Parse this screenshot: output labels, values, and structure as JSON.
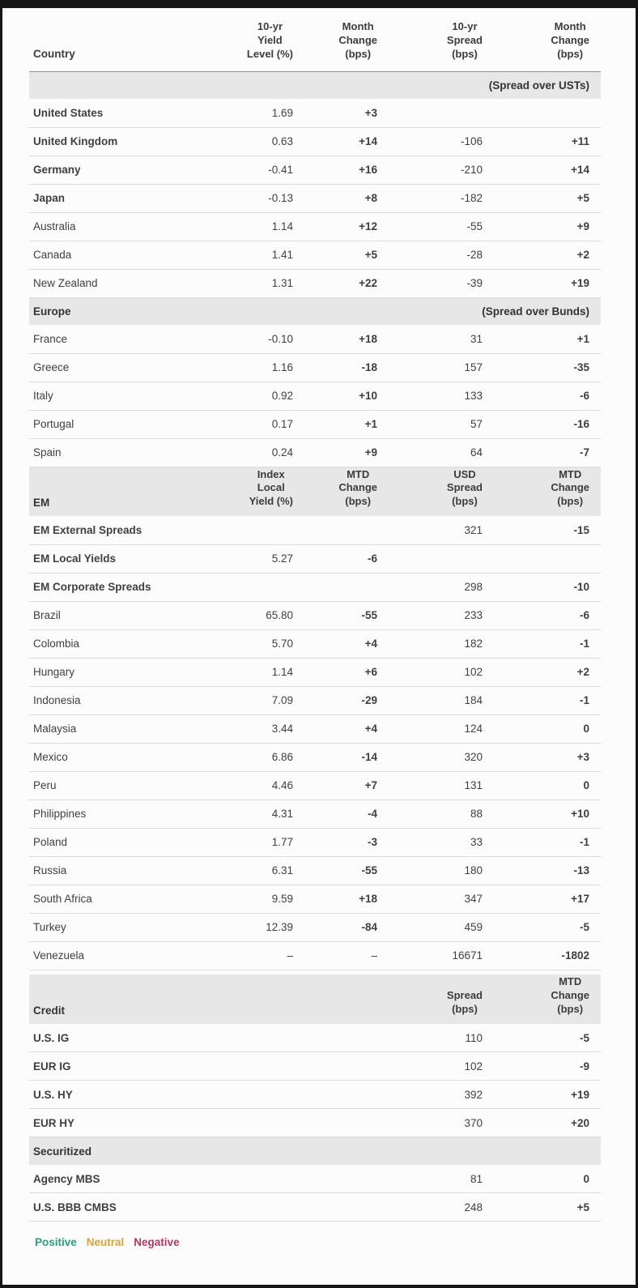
{
  "colors": {
    "positive": "#2e9c7d",
    "neutral": "#d7a33e",
    "negative": "#b23a5f",
    "frame": "#161616",
    "band_bg": "#e8e7e7"
  },
  "chart_data": {
    "type": "table",
    "header": {
      "country_label": "Country",
      "columns": [
        "10-yr\nYield\nLevel (%)",
        "Month\nChange\n(bps)",
        "10-yr\nSpread\n(bps)",
        "Month\nChange\n(bps)"
      ]
    },
    "sections": [
      {
        "label": "",
        "note": "(Spread over USTs)",
        "rows": [
          {
            "label": "United States",
            "bold": true,
            "cells": [
              {
                "t": "1.69",
                "c": "plain"
              },
              {
                "t": "+3",
                "c": "neu"
              },
              {
                "t": "",
                "c": "plain"
              },
              {
                "t": "",
                "c": "plain"
              }
            ]
          },
          {
            "label": "United Kingdom",
            "bold": true,
            "cells": [
              {
                "t": "0.63",
                "c": "plain"
              },
              {
                "t": "+14",
                "c": "neg"
              },
              {
                "t": "-106",
                "c": "plain"
              },
              {
                "t": "+11",
                "c": "neg"
              }
            ]
          },
          {
            "label": "Germany",
            "bold": true,
            "cells": [
              {
                "t": "-0.41",
                "c": "plain"
              },
              {
                "t": "+16",
                "c": "neg"
              },
              {
                "t": "-210",
                "c": "plain"
              },
              {
                "t": "+14",
                "c": "neg"
              }
            ]
          },
          {
            "label": "Japan",
            "bold": true,
            "cells": [
              {
                "t": "-0.13",
                "c": "plain"
              },
              {
                "t": "+8",
                "c": "neg"
              },
              {
                "t": "-182",
                "c": "plain"
              },
              {
                "t": "+5",
                "c": "neg"
              }
            ]
          },
          {
            "label": "Australia",
            "bold": false,
            "cells": [
              {
                "t": "1.14",
                "c": "plain"
              },
              {
                "t": "+12",
                "c": "neg"
              },
              {
                "t": "-55",
                "c": "plain"
              },
              {
                "t": "+9",
                "c": "neg"
              }
            ]
          },
          {
            "label": "Canada",
            "bold": false,
            "cells": [
              {
                "t": "1.41",
                "c": "plain"
              },
              {
                "t": "+5",
                "c": "neg"
              },
              {
                "t": "-28",
                "c": "plain"
              },
              {
                "t": "+2",
                "c": "neu"
              }
            ]
          },
          {
            "label": "New Zealand",
            "bold": false,
            "cells": [
              {
                "t": "1.31",
                "c": "plain"
              },
              {
                "t": "+22",
                "c": "neg"
              },
              {
                "t": "-39",
                "c": "plain"
              },
              {
                "t": "+19",
                "c": "neg"
              }
            ]
          }
        ]
      },
      {
        "label": "Europe",
        "note": "(Spread over Bunds)",
        "rows": [
          {
            "label": "France",
            "bold": false,
            "cells": [
              {
                "t": "-0.10",
                "c": "plain"
              },
              {
                "t": "+18",
                "c": "neg"
              },
              {
                "t": "31",
                "c": "plain"
              },
              {
                "t": "+1",
                "c": "neu"
              }
            ]
          },
          {
            "label": "Greece",
            "bold": false,
            "cells": [
              {
                "t": "1.16",
                "c": "plain"
              },
              {
                "t": "-18",
                "c": "pos"
              },
              {
                "t": "157",
                "c": "plain"
              },
              {
                "t": "-35",
                "c": "pos"
              }
            ]
          },
          {
            "label": "Italy",
            "bold": false,
            "cells": [
              {
                "t": "0.92",
                "c": "plain"
              },
              {
                "t": "+10",
                "c": "neg"
              },
              {
                "t": "133",
                "c": "plain"
              },
              {
                "t": "-6",
                "c": "pos"
              }
            ]
          },
          {
            "label": "Portugal",
            "bold": false,
            "cells": [
              {
                "t": "0.17",
                "c": "plain"
              },
              {
                "t": "+1",
                "c": "neu"
              },
              {
                "t": "57",
                "c": "plain"
              },
              {
                "t": "-16",
                "c": "pos"
              }
            ]
          },
          {
            "label": "Spain",
            "bold": false,
            "cells": [
              {
                "t": "0.24",
                "c": "plain"
              },
              {
                "t": "+9",
                "c": "neg"
              },
              {
                "t": "64",
                "c": "plain"
              },
              {
                "t": "-7",
                "c": "pos"
              }
            ]
          }
        ]
      },
      {
        "label": "EM",
        "columns": [
          "Index\nLocal\nYield (%)",
          "MTD\nChange\n(bps)",
          "USD\nSpread\n(bps)",
          "MTD\nChange\n(bps)"
        ],
        "rows": [
          {
            "label": "EM External Spreads",
            "bold": true,
            "cells": [
              {
                "t": "",
                "c": "plain"
              },
              {
                "t": "",
                "c": "plain"
              },
              {
                "t": "321",
                "c": "plain"
              },
              {
                "t": "-15",
                "c": "pos"
              }
            ]
          },
          {
            "label": "EM Local Yields",
            "bold": true,
            "cells": [
              {
                "t": "5.27",
                "c": "plain"
              },
              {
                "t": "-6",
                "c": "pos"
              },
              {
                "t": "",
                "c": "plain"
              },
              {
                "t": "",
                "c": "plain"
              }
            ]
          },
          {
            "label": "EM Corporate Spreads",
            "bold": true,
            "cells": [
              {
                "t": "",
                "c": "plain"
              },
              {
                "t": "",
                "c": "plain"
              },
              {
                "t": "298",
                "c": "plain"
              },
              {
                "t": "-10",
                "c": "pos"
              }
            ]
          },
          {
            "label": "Brazil",
            "bold": false,
            "cells": [
              {
                "t": "65.80",
                "c": "plain"
              },
              {
                "t": "-55",
                "c": "pos"
              },
              {
                "t": "233",
                "c": "plain"
              },
              {
                "t": "-6",
                "c": "pos"
              }
            ]
          },
          {
            "label": "Colombia",
            "bold": false,
            "cells": [
              {
                "t": "5.70",
                "c": "plain"
              },
              {
                "t": "+4",
                "c": "neg"
              },
              {
                "t": "182",
                "c": "plain"
              },
              {
                "t": "-1",
                "c": "neu"
              }
            ]
          },
          {
            "label": "Hungary",
            "bold": false,
            "cells": [
              {
                "t": "1.14",
                "c": "plain"
              },
              {
                "t": "+6",
                "c": "neg"
              },
              {
                "t": "102",
                "c": "plain"
              },
              {
                "t": "+2",
                "c": "neu"
              }
            ]
          },
          {
            "label": "Indonesia",
            "bold": false,
            "cells": [
              {
                "t": "7.09",
                "c": "plain"
              },
              {
                "t": "-29",
                "c": "pos"
              },
              {
                "t": "184",
                "c": "plain"
              },
              {
                "t": "-1",
                "c": "neu"
              }
            ]
          },
          {
            "label": "Malaysia",
            "bold": false,
            "cells": [
              {
                "t": "3.44",
                "c": "plain"
              },
              {
                "t": "+4",
                "c": "neg"
              },
              {
                "t": "124",
                "c": "plain"
              },
              {
                "t": "0",
                "c": "neu"
              }
            ]
          },
          {
            "label": "Mexico",
            "bold": false,
            "cells": [
              {
                "t": "6.86",
                "c": "plain"
              },
              {
                "t": "-14",
                "c": "pos"
              },
              {
                "t": "320",
                "c": "plain"
              },
              {
                "t": "+3",
                "c": "neu"
              }
            ]
          },
          {
            "label": "Peru",
            "bold": false,
            "cells": [
              {
                "t": "4.46",
                "c": "plain"
              },
              {
                "t": "+7",
                "c": "neg"
              },
              {
                "t": "131",
                "c": "plain"
              },
              {
                "t": "0",
                "c": "neu"
              }
            ]
          },
          {
            "label": "Philippines",
            "bold": false,
            "cells": [
              {
                "t": "4.31",
                "c": "plain"
              },
              {
                "t": "-4",
                "c": "pos"
              },
              {
                "t": "88",
                "c": "plain"
              },
              {
                "t": "+10",
                "c": "neg"
              }
            ]
          },
          {
            "label": "Poland",
            "bold": false,
            "cells": [
              {
                "t": "1.77",
                "c": "plain"
              },
              {
                "t": "-3",
                "c": "pos"
              },
              {
                "t": "33",
                "c": "plain"
              },
              {
                "t": "-1",
                "c": "neu"
              }
            ]
          },
          {
            "label": "Russia",
            "bold": false,
            "cells": [
              {
                "t": "6.31",
                "c": "plain"
              },
              {
                "t": "-55",
                "c": "pos"
              },
              {
                "t": "180",
                "c": "plain"
              },
              {
                "t": "-13",
                "c": "pos"
              }
            ]
          },
          {
            "label": "South Africa",
            "bold": false,
            "cells": [
              {
                "t": "9.59",
                "c": "plain"
              },
              {
                "t": "+18",
                "c": "neg"
              },
              {
                "t": "347",
                "c": "plain"
              },
              {
                "t": "+17",
                "c": "neg"
              }
            ]
          },
          {
            "label": "Turkey",
            "bold": false,
            "cells": [
              {
                "t": "12.39",
                "c": "plain"
              },
              {
                "t": "-84",
                "c": "pos"
              },
              {
                "t": "459",
                "c": "plain"
              },
              {
                "t": "-5",
                "c": "pos"
              }
            ]
          },
          {
            "label": "Venezuela",
            "bold": false,
            "cells": [
              {
                "t": "–",
                "c": "plain"
              },
              {
                "t": "–",
                "c": "plain"
              },
              {
                "t": "16671",
                "c": "plain"
              },
              {
                "t": "-1802",
                "c": "pos"
              }
            ]
          }
        ]
      },
      {
        "label": "Credit",
        "gap_before": true,
        "columns": [
          "",
          "",
          "Spread\n(bps)",
          "MTD\nChange\n(bps)"
        ],
        "rows": [
          {
            "label": "U.S. IG",
            "bold": true,
            "cells": [
              {
                "t": "",
                "c": "plain"
              },
              {
                "t": "",
                "c": "plain"
              },
              {
                "t": "110",
                "c": "plain"
              },
              {
                "t": "-5",
                "c": "pos"
              }
            ]
          },
          {
            "label": "EUR IG",
            "bold": true,
            "cells": [
              {
                "t": "",
                "c": "plain"
              },
              {
                "t": "",
                "c": "plain"
              },
              {
                "t": "102",
                "c": "plain"
              },
              {
                "t": "-9",
                "c": "pos"
              }
            ]
          },
          {
            "label": "U.S. HY",
            "bold": true,
            "cells": [
              {
                "t": "",
                "c": "plain"
              },
              {
                "t": "",
                "c": "plain"
              },
              {
                "t": "392",
                "c": "plain"
              },
              {
                "t": "+19",
                "c": "neg"
              }
            ]
          },
          {
            "label": "EUR HY",
            "bold": true,
            "cells": [
              {
                "t": "",
                "c": "plain"
              },
              {
                "t": "",
                "c": "plain"
              },
              {
                "t": "370",
                "c": "plain"
              },
              {
                "t": "+20",
                "c": "neg"
              }
            ]
          }
        ]
      },
      {
        "label": "Securitized",
        "note": "",
        "rows": [
          {
            "label": "Agency MBS",
            "bold": true,
            "cells": [
              {
                "t": "",
                "c": "plain"
              },
              {
                "t": "",
                "c": "plain"
              },
              {
                "t": "81",
                "c": "plain"
              },
              {
                "t": "0",
                "c": "neu"
              }
            ]
          },
          {
            "label": "U.S. BBB CMBS",
            "bold": true,
            "cells": [
              {
                "t": "",
                "c": "plain"
              },
              {
                "t": "",
                "c": "plain"
              },
              {
                "t": "248",
                "c": "plain"
              },
              {
                "t": "+5",
                "c": "neg"
              }
            ]
          }
        ]
      }
    ],
    "legend": [
      {
        "label": "Positive",
        "c": "pos"
      },
      {
        "label": "Neutral",
        "c": "neu"
      },
      {
        "label": "Negative",
        "c": "neg"
      }
    ]
  }
}
